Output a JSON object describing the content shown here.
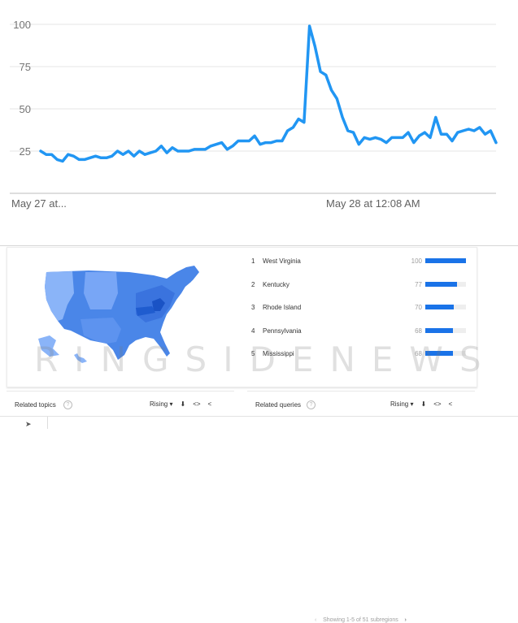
{
  "chart_data": {
    "type": "line",
    "ylim": [
      0,
      100
    ],
    "yticks": [
      25,
      50,
      75,
      100
    ],
    "grid": true,
    "x_labels": [
      "May 27 at...",
      "May 28 at 12:08 AM"
    ],
    "series": [
      {
        "color": "#2196f3",
        "values": [
          25,
          23,
          23,
          20,
          19,
          23,
          22,
          20,
          20,
          21,
          22,
          21,
          21,
          22,
          25,
          23,
          25,
          22,
          25,
          23,
          24,
          25,
          28,
          24,
          27,
          25,
          25,
          25,
          26,
          26,
          26,
          28,
          29,
          30,
          26,
          28,
          31,
          31,
          31,
          34,
          29,
          30,
          30,
          31,
          31,
          37,
          39,
          44,
          42,
          99,
          87,
          72,
          70,
          61,
          56,
          45,
          37,
          36,
          29,
          33,
          32,
          33,
          32,
          30,
          33,
          33,
          33,
          36,
          30,
          34,
          36,
          33,
          45,
          35,
          35,
          31,
          36,
          37,
          38,
          37,
          39,
          35,
          37,
          30
        ]
      }
    ]
  },
  "regions": {
    "rows": [
      {
        "rank": "1",
        "name": "West Virginia",
        "value": "100",
        "level": 1.0
      },
      {
        "rank": "2",
        "name": "Kentucky",
        "value": "77",
        "level": 0.77
      },
      {
        "rank": "3",
        "name": "Rhode Island",
        "value": "70",
        "level": 0.7
      },
      {
        "rank": "4",
        "name": "Pennsylvania",
        "value": "68",
        "level": 0.68
      },
      {
        "rank": "5",
        "name": "Mississippi",
        "value": "68",
        "level": 0.68
      }
    ],
    "pager_text": "Showing 1-5 of 51 subregions",
    "prev_icon": "chevron-left-icon",
    "next_icon": "chevron-right-icon"
  },
  "watermark": "RINGSIDENEWS",
  "related_topics": {
    "title": "Related topics",
    "filter": "Rising",
    "help_icon": "help-circle-icon",
    "dropdown_icon": "caret-down-icon",
    "download_icon": "download-icon",
    "embed_icon": "embed-code-icon",
    "share_icon": "share-icon"
  },
  "related_queries": {
    "title": "Related queries",
    "filter": "Rising",
    "help_icon": "help-circle-icon",
    "dropdown_icon": "caret-down-icon",
    "download_icon": "download-icon",
    "embed_icon": "embed-code-icon",
    "share_icon": "share-icon"
  },
  "colors": {
    "line": "#2196f3",
    "bar": "#1a73e8",
    "map_light": "#8ab4f8",
    "map_mid": "#4a86e8",
    "map_dark": "#1a53c5"
  }
}
